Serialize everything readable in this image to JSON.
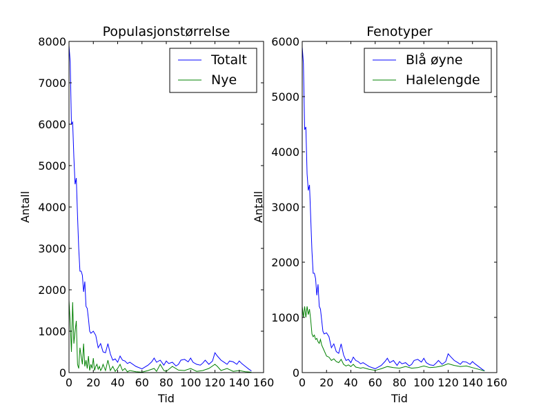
{
  "chart_data": [
    {
      "type": "line",
      "title": "Populasjonstørrelse",
      "xlabel": "Tid",
      "ylabel": "Antall",
      "xlim": [
        0,
        160
      ],
      "ylim": [
        0,
        8000
      ],
      "xticks": [
        "0",
        "20",
        "40",
        "60",
        "80",
        "100",
        "120",
        "140",
        "160"
      ],
      "yticks": [
        "0",
        "1000",
        "2000",
        "3000",
        "4000",
        "5000",
        "6000",
        "7000",
        "8000"
      ],
      "legend_position": "top-right",
      "grid": false,
      "series": [
        {
          "name": "Totalt",
          "color": "#0000ff",
          "x": [
            0,
            1,
            2,
            3,
            4,
            5,
            6,
            7,
            8,
            9,
            10,
            11,
            12,
            13,
            14,
            15,
            16,
            17,
            18,
            20,
            22,
            24,
            26,
            28,
            30,
            32,
            34,
            36,
            38,
            40,
            42,
            44,
            46,
            48,
            50,
            55,
            60,
            65,
            68,
            70,
            72,
            75,
            78,
            80,
            82,
            85,
            88,
            90,
            92,
            95,
            98,
            100,
            102,
            105,
            108,
            110,
            112,
            115,
            118,
            120,
            122,
            125,
            128,
            130,
            132,
            135,
            138,
            140,
            142,
            145,
            148,
            150
          ],
          "y": [
            7900,
            7500,
            6000,
            6050,
            5200,
            4550,
            4700,
            3800,
            3000,
            2450,
            2450,
            2350,
            1950,
            2200,
            1600,
            1550,
            1300,
            1000,
            950,
            1000,
            900,
            600,
            700,
            500,
            480,
            700,
            450,
            300,
            330,
            250,
            400,
            300,
            280,
            220,
            250,
            150,
            90,
            180,
            260,
            350,
            250,
            300,
            180,
            280,
            220,
            250,
            160,
            200,
            300,
            320,
            260,
            350,
            250,
            200,
            180,
            230,
            300,
            200,
            280,
            480,
            400,
            300,
            240,
            200,
            280,
            260,
            200,
            280,
            220,
            150,
            80,
            40
          ]
        },
        {
          "name": "Nye",
          "color": "#008000",
          "x": [
            0,
            1,
            2,
            3,
            4,
            5,
            6,
            7,
            8,
            9,
            10,
            11,
            12,
            13,
            14,
            15,
            16,
            17,
            18,
            19,
            20,
            21,
            22,
            23,
            24,
            25,
            26,
            27,
            28,
            30,
            32,
            34,
            36,
            38,
            40,
            42,
            44,
            46,
            48,
            50,
            55,
            60,
            65,
            70,
            72,
            75,
            78,
            80,
            85,
            90,
            95,
            100,
            105,
            110,
            115,
            120,
            122,
            125,
            130,
            135,
            140,
            145,
            150
          ],
          "y": [
            1750,
            1200,
            500,
            1700,
            700,
            1000,
            1250,
            200,
            100,
            600,
            400,
            200,
            700,
            150,
            300,
            100,
            400,
            50,
            200,
            100,
            350,
            50,
            150,
            200,
            80,
            150,
            50,
            100,
            200,
            50,
            300,
            50,
            150,
            30,
            100,
            200,
            50,
            100,
            20,
            50,
            20,
            10,
            50,
            100,
            30,
            200,
            50,
            30,
            150,
            60,
            50,
            100,
            30,
            50,
            100,
            200,
            150,
            50,
            100,
            30,
            50,
            20,
            10
          ]
        }
      ]
    },
    {
      "type": "line",
      "title": "Fenotyper",
      "xlabel": "Tid",
      "ylabel": "Antall",
      "xlim": [
        0,
        160
      ],
      "ylim": [
        0,
        6000
      ],
      "xticks": [
        "0",
        "20",
        "40",
        "60",
        "80",
        "100",
        "120",
        "140",
        "160"
      ],
      "yticks": [
        "0",
        "1000",
        "2000",
        "3000",
        "4000",
        "5000",
        "6000"
      ],
      "legend_position": "top-right",
      "grid": false,
      "series": [
        {
          "name": "Blå øyne",
          "color": "#0000ff",
          "x": [
            0,
            1,
            2,
            3,
            4,
            5,
            6,
            7,
            8,
            9,
            10,
            11,
            12,
            13,
            14,
            15,
            16,
            17,
            18,
            20,
            22,
            24,
            26,
            28,
            30,
            32,
            34,
            36,
            38,
            40,
            42,
            44,
            46,
            48,
            50,
            55,
            60,
            65,
            68,
            70,
            72,
            75,
            78,
            80,
            82,
            85,
            88,
            90,
            92,
            95,
            98,
            100,
            102,
            105,
            108,
            110,
            112,
            115,
            118,
            120,
            122,
            125,
            128,
            130,
            132,
            135,
            138,
            140,
            142,
            145,
            148,
            150
          ],
          "y": [
            5900,
            5600,
            4400,
            4450,
            3600,
            3300,
            3400,
            2800,
            2200,
            1800,
            1800,
            1700,
            1400,
            1600,
            1200,
            1150,
            950,
            750,
            700,
            720,
            650,
            450,
            520,
            380,
            350,
            520,
            320,
            220,
            240,
            180,
            280,
            220,
            200,
            160,
            180,
            110,
            70,
            130,
            200,
            260,
            180,
            220,
            130,
            200,
            160,
            180,
            120,
            150,
            220,
            240,
            190,
            260,
            180,
            140,
            130,
            170,
            220,
            150,
            200,
            340,
            290,
            220,
            180,
            150,
            200,
            190,
            150,
            200,
            160,
            110,
            60,
            30
          ]
        },
        {
          "name": "Halelengde",
          "color": "#008000",
          "x": [
            0,
            1,
            2,
            3,
            4,
            5,
            6,
            7,
            8,
            9,
            10,
            11,
            12,
            13,
            14,
            15,
            16,
            17,
            18,
            20,
            22,
            24,
            26,
            28,
            30,
            32,
            34,
            36,
            38,
            40,
            42,
            44,
            46,
            48,
            50,
            55,
            60,
            65,
            70,
            75,
            80,
            85,
            90,
            95,
            100,
            105,
            110,
            115,
            120,
            125,
            130,
            135,
            140,
            145,
            150
          ],
          "y": [
            1200,
            1000,
            1200,
            1000,
            1200,
            1050,
            1150,
            950,
            700,
            650,
            680,
            600,
            620,
            560,
            530,
            600,
            500,
            450,
            400,
            300,
            280,
            220,
            250,
            200,
            180,
            240,
            150,
            120,
            140,
            110,
            150,
            100,
            90,
            80,
            90,
            60,
            40,
            70,
            110,
            90,
            80,
            110,
            80,
            90,
            120,
            90,
            100,
            120,
            160,
            130,
            110,
            120,
            90,
            60,
            30
          ]
        }
      ]
    }
  ]
}
